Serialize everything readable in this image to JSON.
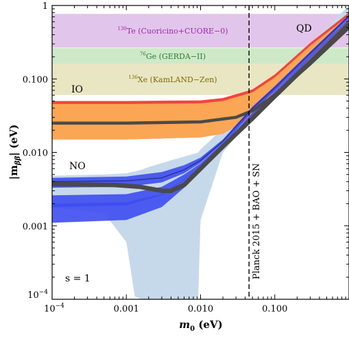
{
  "chart_data": {
    "type": "area",
    "xlabel": "m₀ (eV)",
    "ylabel": "|mββ| (eV)",
    "x_scale": "log",
    "y_scale": "log",
    "xlim": [
      0.0001,
      1
    ],
    "ylim": [
      0.0001,
      1
    ],
    "x_ticks": [
      {
        "value": 0.0001,
        "base": "10",
        "exp": "−4"
      },
      {
        "value": 0.001,
        "label": "0.001"
      },
      {
        "value": 0.01,
        "label": "0.010"
      },
      {
        "value": 0.1,
        "label": "0.100"
      }
    ],
    "y_ticks": [
      {
        "value": 0.0001,
        "base": "10",
        "exp": "−4"
      },
      {
        "value": 0.001,
        "label": "0.001"
      },
      {
        "value": 0.01,
        "label": "0.010"
      },
      {
        "value": 0.1,
        "label": "0.100"
      },
      {
        "value": 1,
        "label": "1"
      }
    ],
    "exclusion_bands": [
      {
        "iso": "130",
        "element": "Te",
        "experiment": " (Cuoricino+CUORE−0)",
        "ymin": 0.27,
        "ymax": 0.76,
        "fill": "#e2c5ea",
        "text_color": "#9c27b0"
      },
      {
        "iso": "76",
        "element": "Ge",
        "experiment": " (GERDA−II)",
        "ymin": 0.16,
        "ymax": 0.26,
        "fill": "#cde9c8",
        "text_color": "#2e7d32"
      },
      {
        "iso": "136",
        "element": "Xe",
        "experiment": " (KamLAND−Zen)",
        "ymin": 0.061,
        "ymax": 0.16,
        "fill": "#e9e6c4",
        "text_color": "#7a6a00"
      }
    ],
    "region_labels": {
      "io": "IO",
      "no": "NO",
      "qd": "QD",
      "s": "s = 1"
    },
    "planck_limit": {
      "x": 0.045,
      "label": "Planck 2015 + BAO + SN"
    },
    "series": [
      {
        "name": "IO",
        "x": [
          0.0001,
          0.001,
          0.01,
          0.02,
          0.05,
          0.1,
          0.3,
          1
        ],
        "ymin": [
          0.015,
          0.015,
          0.016,
          0.018,
          0.03,
          0.055,
          0.16,
          0.5
        ],
        "ymax": [
          0.05,
          0.05,
          0.051,
          0.055,
          0.072,
          0.115,
          0.31,
          0.8
        ]
      },
      {
        "name": "NO",
        "x": [
          0.0001,
          0.001,
          0.003,
          0.006,
          0.01,
          0.02,
          0.05,
          0.1,
          0.3,
          1
        ],
        "ymin": [
          0.0018,
          0.0019,
          0.0025,
          0.004,
          0.0065,
          0.013,
          0.035,
          0.065,
          0.2,
          0.65
        ],
        "ymax": [
          0.0048,
          0.005,
          0.006,
          0.0075,
          0.01,
          0.02,
          0.05,
          0.1,
          0.3,
          1
        ]
      },
      {
        "name": "best-fit IO",
        "x": [
          0.0001,
          0.001,
          0.01,
          0.03,
          0.05,
          0.1,
          0.3,
          1
        ],
        "y": [
          0.025,
          0.025,
          0.026,
          0.03,
          0.037,
          0.06,
          0.16,
          0.5
        ]
      },
      {
        "name": "best-fit NO",
        "x": [
          0.0001,
          0.0007,
          0.0015,
          0.003,
          0.004,
          0.006,
          0.008,
          0.01,
          0.02,
          0.05,
          0.1,
          0.3,
          1
        ],
        "y": [
          0.0037,
          0.0036,
          0.0034,
          0.003,
          0.003,
          0.0036,
          0.0048,
          0.006,
          0.012,
          0.029,
          0.058,
          0.17,
          0.56
        ]
      }
    ]
  }
}
